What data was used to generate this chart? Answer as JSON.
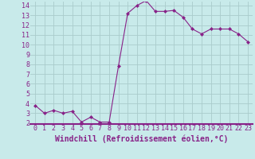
{
  "x": [
    0,
    1,
    2,
    3,
    4,
    5,
    6,
    7,
    8,
    9,
    10,
    11,
    12,
    13,
    14,
    15,
    16,
    17,
    18,
    19,
    20,
    21,
    22,
    23
  ],
  "y": [
    3.8,
    3.0,
    3.3,
    3.0,
    3.2,
    2.1,
    2.6,
    2.1,
    2.1,
    7.8,
    13.2,
    14.0,
    14.5,
    13.4,
    13.4,
    13.5,
    12.8,
    11.6,
    11.1,
    11.6,
    11.6,
    11.6,
    11.1,
    10.3
  ],
  "line_color": "#882288",
  "marker": "D",
  "marker_size": 2,
  "bg_color": "#c8eaea",
  "grid_color": "#aacccc",
  "xlabel": "Windchill (Refroidissement éolien,°C)",
  "ylim": [
    2,
    14
  ],
  "xlim": [
    -0.5,
    23.5
  ],
  "yticks": [
    2,
    3,
    4,
    5,
    6,
    7,
    8,
    9,
    10,
    11,
    12,
    13,
    14
  ],
  "xticks": [
    0,
    1,
    2,
    3,
    4,
    5,
    6,
    7,
    8,
    9,
    10,
    11,
    12,
    13,
    14,
    15,
    16,
    17,
    18,
    19,
    20,
    21,
    22,
    23
  ],
  "tick_color": "#882288",
  "label_color": "#882288",
  "xlabel_fontsize": 7,
  "tick_fontsize": 6,
  "border_color": "#882288",
  "spine_bottom_color": "#882288"
}
